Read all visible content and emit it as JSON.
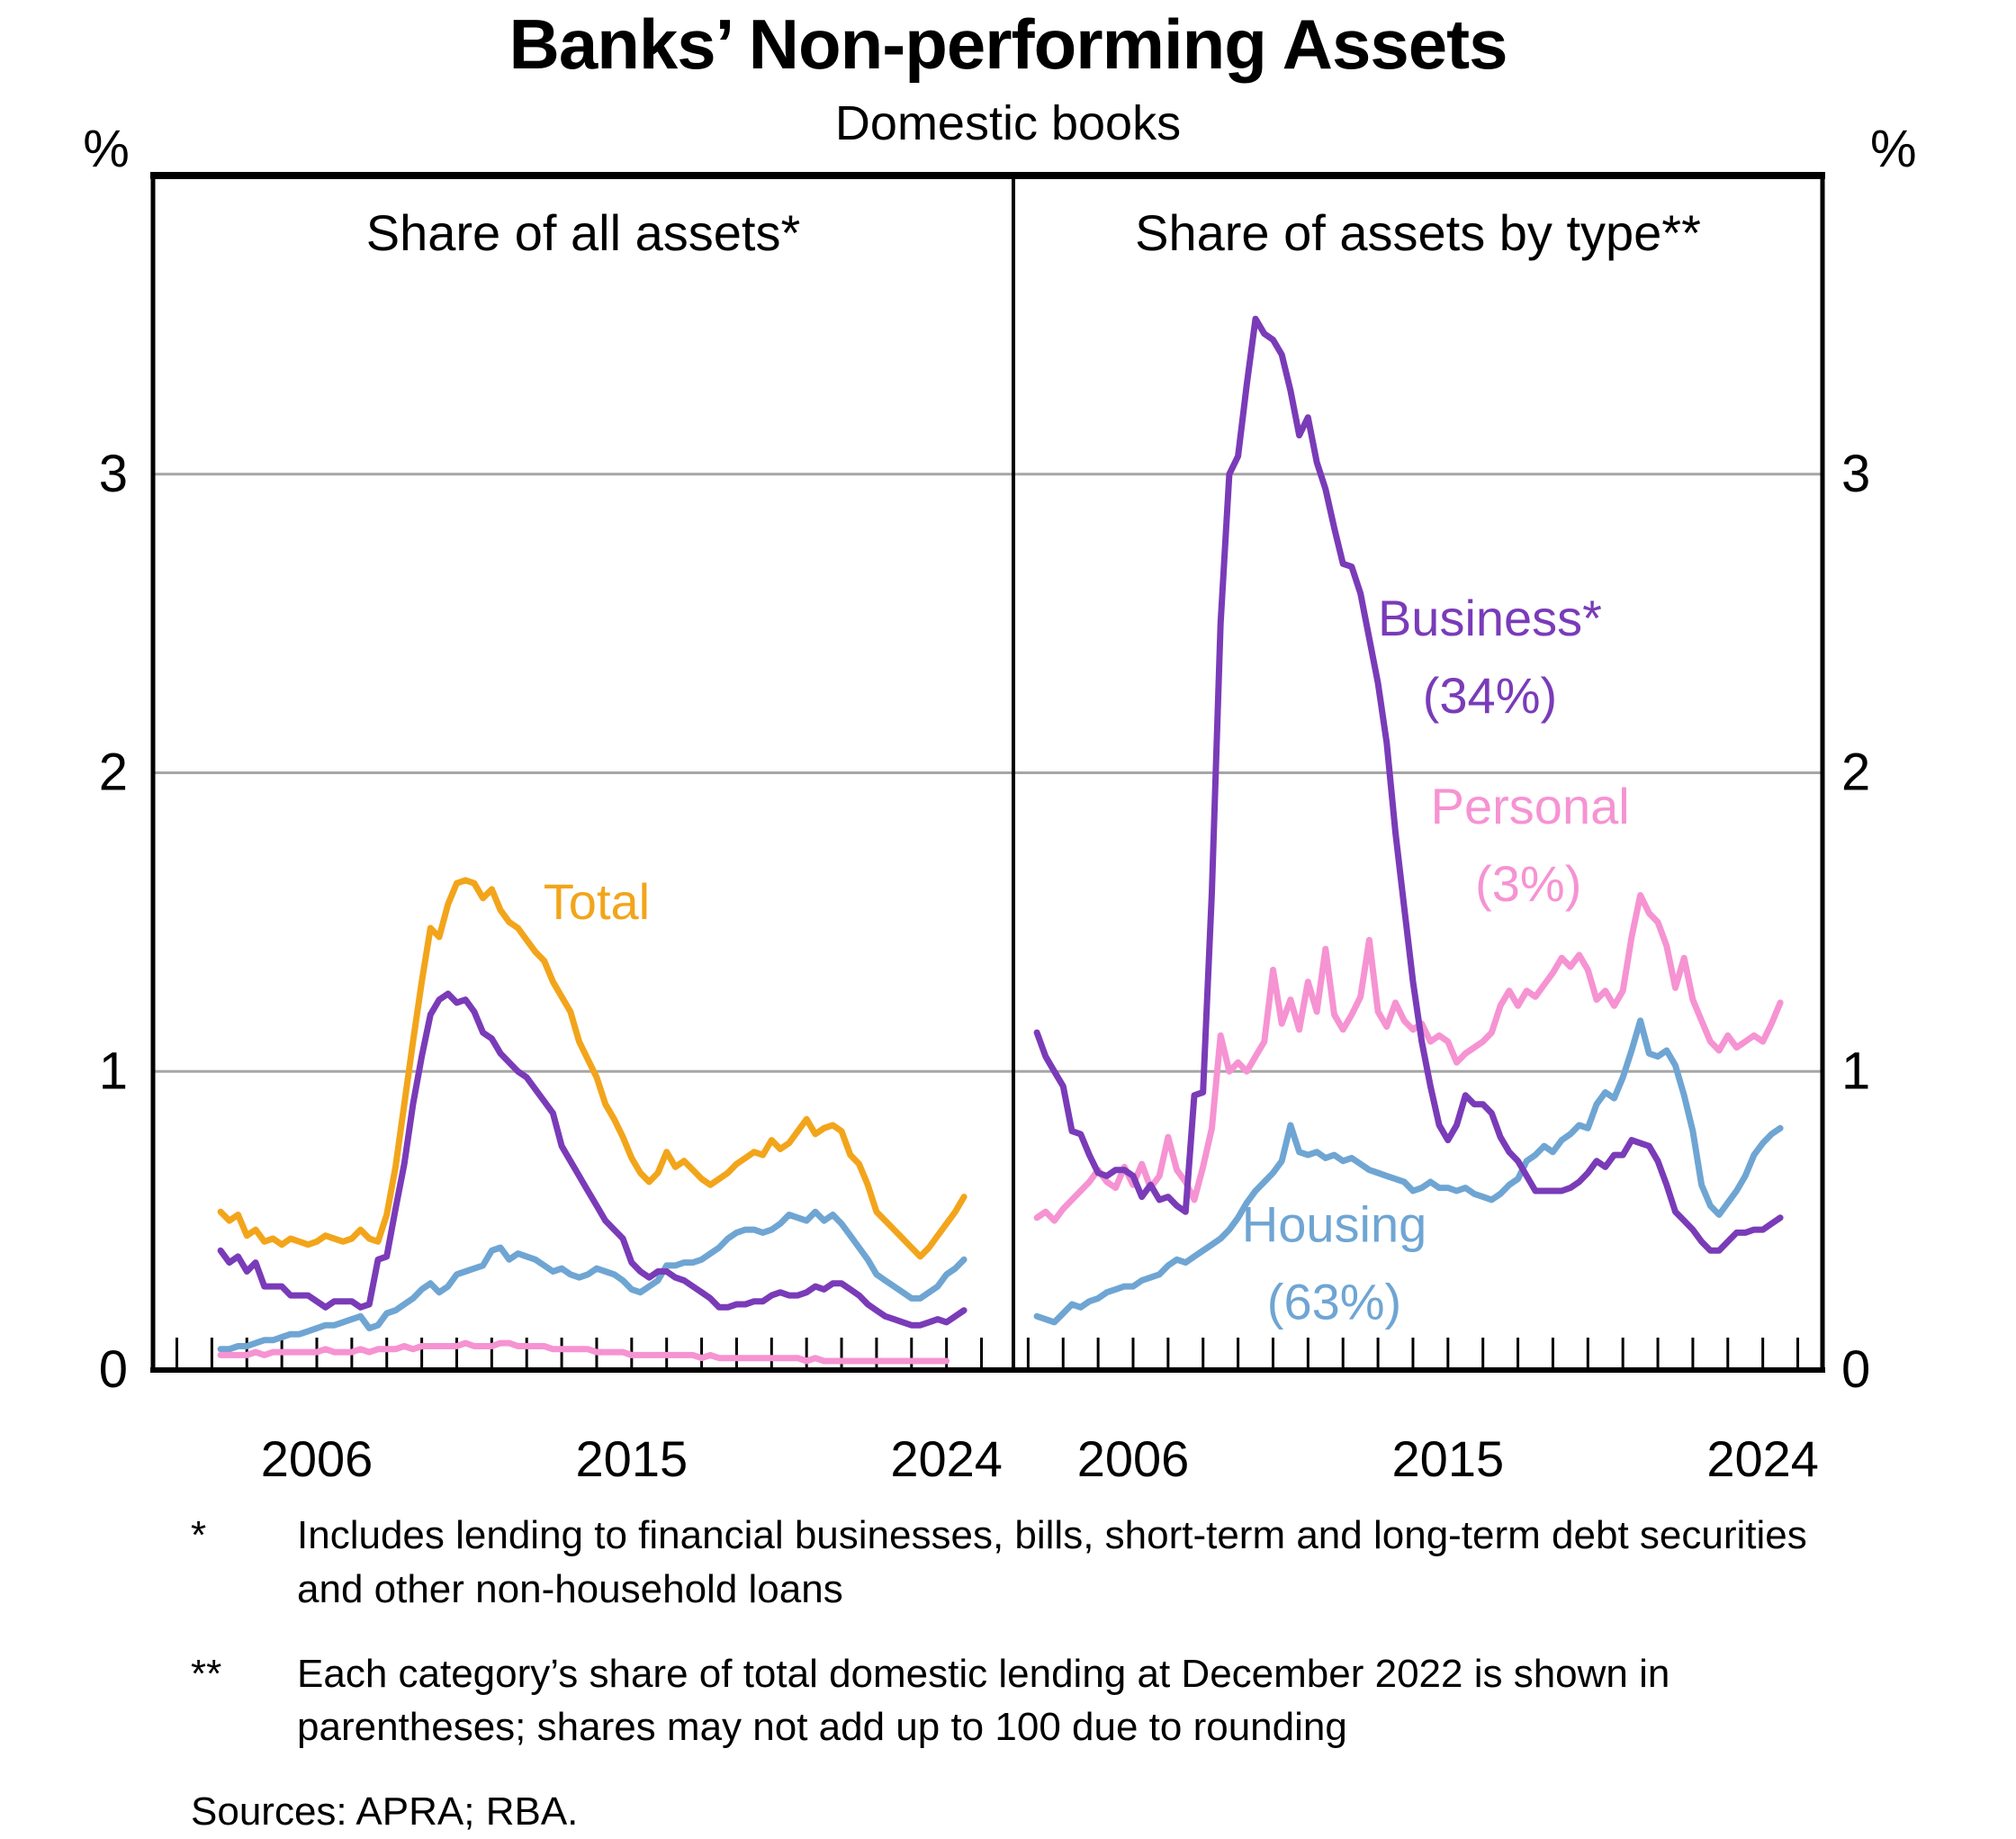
{
  "title": "Banks’ Non-performing Assets",
  "subtitle": "Domestic books",
  "footnotes": [
    {
      "marker": "*",
      "text": "Includes lending to financial businesses, bills, short-term and long-term debt securities and other non-household loans"
    },
    {
      "marker": "**",
      "text": "Each category’s share of total domestic lending at December 2022 is shown in parentheses; shares may not add up to 100 due to rounding"
    }
  ],
  "sources": "Sources: APRA; RBA.",
  "colors": {
    "total": "#F2A51B",
    "business": "#7A3BB8",
    "housing": "#6FA5D3",
    "personal": "#F693D2",
    "gridline": "#A6A6A6",
    "frame": "#000000"
  },
  "chart_data": [
    {
      "type": "line",
      "panel": "left",
      "title": "Share of all assets*",
      "ylabel": "%",
      "ylim": [
        0,
        4
      ],
      "yticks": [
        0,
        1,
        2,
        3
      ],
      "x_tick_years_start": 2002,
      "x_tick_years_end": 2025,
      "x_label_years": [
        2006,
        2015,
        2024
      ],
      "grid": true,
      "legend_position": "inline-labels",
      "series": [
        {
          "name": "Total",
          "color_key": "total",
          "start": 2003.25,
          "step": 0.25,
          "values": [
            0.53,
            0.5,
            0.52,
            0.45,
            0.47,
            0.43,
            0.44,
            0.42,
            0.44,
            0.43,
            0.42,
            0.43,
            0.45,
            0.44,
            0.43,
            0.44,
            0.47,
            0.44,
            0.43,
            0.52,
            0.68,
            0.89,
            1.1,
            1.3,
            1.48,
            1.45,
            1.56,
            1.63,
            1.64,
            1.63,
            1.58,
            1.61,
            1.54,
            1.5,
            1.48,
            1.44,
            1.4,
            1.37,
            1.3,
            1.25,
            1.2,
            1.1,
            1.04,
            0.98,
            0.89,
            0.84,
            0.78,
            0.71,
            0.66,
            0.63,
            0.66,
            0.73,
            0.68,
            0.7,
            0.67,
            0.64,
            0.62,
            0.64,
            0.66,
            0.69,
            0.71,
            0.73,
            0.72,
            0.77,
            0.74,
            0.76,
            0.8,
            0.84,
            0.79,
            0.81,
            0.82,
            0.8,
            0.72,
            0.69,
            0.62,
            0.53,
            0.5,
            0.47,
            0.44,
            0.41,
            0.38,
            0.41,
            0.45,
            0.49,
            0.53,
            0.58
          ]
        },
        {
          "name": "Housing",
          "color_key": "housing",
          "start": 2003.25,
          "step": 0.25,
          "values": [
            0.07,
            0.07,
            0.08,
            0.08,
            0.09,
            0.1,
            0.1,
            0.11,
            0.12,
            0.12,
            0.13,
            0.14,
            0.15,
            0.15,
            0.16,
            0.17,
            0.18,
            0.14,
            0.15,
            0.19,
            0.2,
            0.22,
            0.24,
            0.27,
            0.29,
            0.26,
            0.28,
            0.32,
            0.33,
            0.34,
            0.35,
            0.4,
            0.41,
            0.37,
            0.39,
            0.38,
            0.37,
            0.35,
            0.33,
            0.34,
            0.32,
            0.31,
            0.32,
            0.34,
            0.33,
            0.32,
            0.3,
            0.27,
            0.26,
            0.28,
            0.3,
            0.35,
            0.35,
            0.36,
            0.36,
            0.37,
            0.39,
            0.41,
            0.44,
            0.46,
            0.47,
            0.47,
            0.46,
            0.47,
            0.49,
            0.52,
            0.51,
            0.5,
            0.53,
            0.5,
            0.52,
            0.49,
            0.45,
            0.41,
            0.37,
            0.32,
            0.3,
            0.28,
            0.26,
            0.24,
            0.24,
            0.26,
            0.28,
            0.32,
            0.34,
            0.37
          ]
        },
        {
          "name": "Personal",
          "color_key": "personal",
          "start": 2003.25,
          "step": 0.25,
          "values": [
            0.05,
            0.05,
            0.05,
            0.05,
            0.06,
            0.05,
            0.06,
            0.06,
            0.06,
            0.06,
            0.06,
            0.06,
            0.07,
            0.06,
            0.06,
            0.06,
            0.07,
            0.06,
            0.07,
            0.07,
            0.07,
            0.08,
            0.07,
            0.08,
            0.08,
            0.08,
            0.08,
            0.08,
            0.09,
            0.08,
            0.08,
            0.08,
            0.09,
            0.09,
            0.08,
            0.08,
            0.08,
            0.08,
            0.07,
            0.07,
            0.07,
            0.07,
            0.07,
            0.06,
            0.06,
            0.06,
            0.06,
            0.05,
            0.05,
            0.05,
            0.05,
            0.05,
            0.05,
            0.05,
            0.05,
            0.04,
            0.05,
            0.04,
            0.04,
            0.04,
            0.04,
            0.04,
            0.04,
            0.04,
            0.04,
            0.04,
            0.04,
            0.03,
            0.04,
            0.03,
            0.03,
            0.03,
            0.03,
            0.03,
            0.03,
            0.03,
            0.03,
            0.03,
            0.03,
            0.03,
            0.03,
            0.03,
            0.03,
            0.03
          ]
        },
        {
          "name": "Business",
          "color_key": "business",
          "start": 2003.25,
          "step": 0.25,
          "values": [
            0.4,
            0.36,
            0.38,
            0.33,
            0.36,
            0.28,
            0.28,
            0.28,
            0.25,
            0.25,
            0.25,
            0.23,
            0.21,
            0.23,
            0.23,
            0.23,
            0.21,
            0.22,
            0.37,
            0.38,
            0.54,
            0.69,
            0.89,
            1.05,
            1.19,
            1.24,
            1.26,
            1.23,
            1.24,
            1.2,
            1.13,
            1.11,
            1.06,
            1.03,
            1.0,
            0.98,
            0.94,
            0.9,
            0.86,
            0.75,
            0.7,
            0.65,
            0.6,
            0.55,
            0.5,
            0.47,
            0.44,
            0.36,
            0.33,
            0.31,
            0.33,
            0.33,
            0.31,
            0.3,
            0.28,
            0.26,
            0.24,
            0.21,
            0.21,
            0.22,
            0.22,
            0.23,
            0.23,
            0.25,
            0.26,
            0.25,
            0.25,
            0.26,
            0.28,
            0.27,
            0.29,
            0.29,
            0.27,
            0.25,
            0.22,
            0.2,
            0.18,
            0.17,
            0.16,
            0.15,
            0.15,
            0.16,
            0.17,
            0.16,
            0.18,
            0.2
          ]
        }
      ],
      "annotations": [
        {
          "text": "Total",
          "color_key": "total",
          "x": 2014.0,
          "y": 1.51
        }
      ]
    },
    {
      "type": "line",
      "panel": "right",
      "title": "Share of assets by type**",
      "ylabel": "%",
      "ylim": [
        0,
        4
      ],
      "yticks": [
        0,
        1,
        2,
        3
      ],
      "x_tick_years_start": 2003,
      "x_tick_years_end": 2025,
      "x_label_years": [
        2006,
        2015,
        2024
      ],
      "grid": true,
      "legend_position": "inline-labels",
      "series": [
        {
          "name": "Housing",
          "color_key": "housing",
          "start": 2003.25,
          "step": 0.25,
          "values": [
            0.18,
            0.17,
            0.16,
            0.19,
            0.22,
            0.21,
            0.23,
            0.24,
            0.26,
            0.27,
            0.28,
            0.28,
            0.3,
            0.31,
            0.32,
            0.35,
            0.37,
            0.36,
            0.38,
            0.4,
            0.42,
            0.44,
            0.47,
            0.51,
            0.56,
            0.6,
            0.63,
            0.66,
            0.7,
            0.82,
            0.73,
            0.72,
            0.73,
            0.71,
            0.72,
            0.7,
            0.71,
            0.69,
            0.67,
            0.66,
            0.65,
            0.64,
            0.63,
            0.6,
            0.61,
            0.63,
            0.61,
            0.61,
            0.6,
            0.61,
            0.59,
            0.58,
            0.57,
            0.59,
            0.62,
            0.64,
            0.7,
            0.72,
            0.75,
            0.73,
            0.77,
            0.79,
            0.82,
            0.81,
            0.89,
            0.93,
            0.91,
            0.98,
            1.07,
            1.17,
            1.06,
            1.05,
            1.07,
            1.02,
            0.92,
            0.8,
            0.62,
            0.55,
            0.52,
            0.56,
            0.6,
            0.65,
            0.72,
            0.76,
            0.79,
            0.81
          ]
        },
        {
          "name": "Personal",
          "color_key": "personal",
          "start": 2003.25,
          "step": 0.25,
          "values": [
            0.51,
            0.53,
            0.5,
            0.54,
            0.57,
            0.6,
            0.63,
            0.67,
            0.63,
            0.61,
            0.68,
            0.62,
            0.69,
            0.61,
            0.65,
            0.78,
            0.67,
            0.63,
            0.57,
            0.68,
            0.81,
            1.12,
            1.0,
            1.03,
            1.0,
            1.05,
            1.1,
            1.34,
            1.16,
            1.24,
            1.14,
            1.3,
            1.2,
            1.41,
            1.19,
            1.14,
            1.19,
            1.25,
            1.44,
            1.2,
            1.15,
            1.23,
            1.17,
            1.14,
            1.16,
            1.1,
            1.12,
            1.1,
            1.03,
            1.06,
            1.08,
            1.1,
            1.13,
            1.22,
            1.27,
            1.22,
            1.27,
            1.25,
            1.29,
            1.33,
            1.38,
            1.35,
            1.39,
            1.34,
            1.24,
            1.27,
            1.22,
            1.27,
            1.45,
            1.59,
            1.53,
            1.5,
            1.42,
            1.28,
            1.38,
            1.24,
            1.17,
            1.1,
            1.07,
            1.12,
            1.08,
            1.1,
            1.12,
            1.1,
            1.16,
            1.23
          ]
        },
        {
          "name": "Business",
          "color_key": "business",
          "start": 2003.25,
          "step": 0.25,
          "values": [
            1.13,
            1.05,
            1.0,
            0.95,
            0.8,
            0.79,
            0.72,
            0.66,
            0.65,
            0.67,
            0.67,
            0.65,
            0.58,
            0.62,
            0.57,
            0.58,
            0.55,
            0.53,
            0.92,
            0.93,
            1.6,
            2.5,
            3.0,
            3.06,
            3.3,
            3.52,
            3.47,
            3.45,
            3.4,
            3.28,
            3.13,
            3.19,
            3.04,
            2.95,
            2.82,
            2.7,
            2.69,
            2.6,
            2.45,
            2.3,
            2.1,
            1.8,
            1.55,
            1.3,
            1.1,
            0.95,
            0.82,
            0.77,
            0.82,
            0.92,
            0.89,
            0.89,
            0.86,
            0.78,
            0.73,
            0.7,
            0.65,
            0.6,
            0.6,
            0.6,
            0.6,
            0.61,
            0.63,
            0.66,
            0.7,
            0.68,
            0.72,
            0.72,
            0.77,
            0.76,
            0.75,
            0.7,
            0.62,
            0.53,
            0.5,
            0.47,
            0.43,
            0.4,
            0.4,
            0.43,
            0.46,
            0.46,
            0.47,
            0.47,
            0.49,
            0.51
          ]
        }
      ],
      "annotations": [
        {
          "text": "Business*",
          "color_key": "business",
          "x": 2016.2,
          "y": 2.46
        },
        {
          "text": "(34%)",
          "color_key": "business",
          "x": 2016.2,
          "y": 2.2
        },
        {
          "text": "Personal",
          "color_key": "personal",
          "x": 2017.35,
          "y": 1.83
        },
        {
          "text": "(3%)",
          "color_key": "personal",
          "x": 2017.3,
          "y": 1.57
        },
        {
          "text": "Housing",
          "color_key": "housing",
          "x": 2011.75,
          "y": 0.43
        },
        {
          "text": "(63%)",
          "color_key": "housing",
          "x": 2011.75,
          "y": 0.17
        }
      ]
    }
  ]
}
